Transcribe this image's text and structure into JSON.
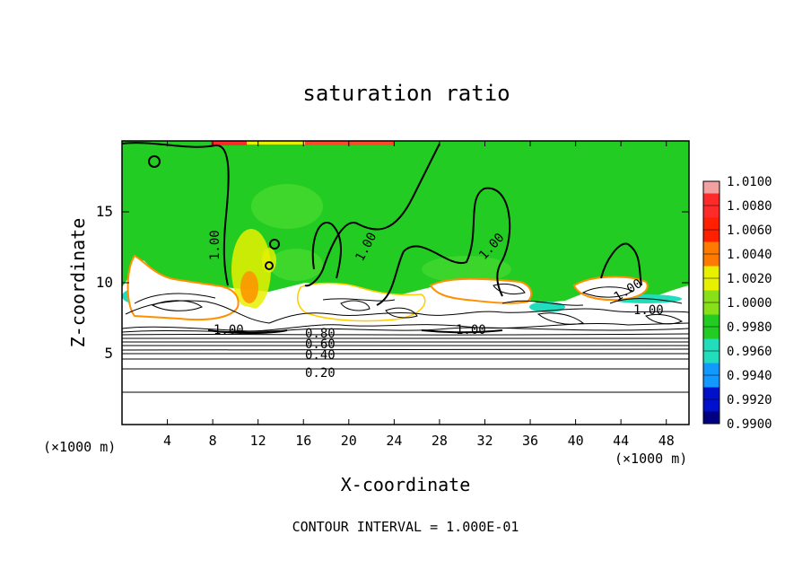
{
  "chart_data": {
    "type": "heatmap",
    "title": "saturation ratio",
    "xlabel": "X-coordinate",
    "ylabel": "Z-coordinate",
    "x_unit_left": "(×1000 m)",
    "x_unit_right": "(×1000 m)",
    "footer": "CONTOUR INTERVAL = 1.000E-01",
    "xlim": [
      0,
      50
    ],
    "ylim": [
      0,
      20
    ],
    "x_ticks": [
      4,
      8,
      12,
      16,
      20,
      24,
      28,
      32,
      36,
      40,
      44,
      48
    ],
    "y_ticks": [
      5,
      10,
      15
    ],
    "contour_labels": [
      {
        "text": "1.00",
        "x": 9.5,
        "z": 12.5
      },
      {
        "text": "1.00",
        "x": 21.5,
        "z": 11.9
      },
      {
        "text": "1.00",
        "x": 32.5,
        "z": 12.5
      },
      {
        "text": "1.00",
        "x": 44.3,
        "z": 9.2
      },
      {
        "text": "1.00",
        "x": 46.5,
        "z": 8.2
      },
      {
        "text": "1.00",
        "x": 9.5,
        "z": 6.8
      },
      {
        "text": "1.00",
        "x": 31.0,
        "z": 6.6
      },
      {
        "text": "0.80",
        "x": 17.5,
        "z": 6.6
      },
      {
        "text": "0.60",
        "x": 17.5,
        "z": 5.7
      },
      {
        "text": "0.40",
        "x": 17.5,
        "z": 4.9
      },
      {
        "text": "0.20",
        "x": 17.5,
        "z": 3.7
      }
    ],
    "contour_levels": [
      0.2,
      0.3,
      0.4,
      0.5,
      0.6,
      0.7,
      0.8,
      0.9,
      1.0
    ],
    "colorbar": {
      "levels": [
        "1.0100",
        "1.0080",
        "1.0060",
        "1.0040",
        "1.0020",
        "1.0000",
        "0.9980",
        "0.9960",
        "0.9940",
        "0.9920",
        "0.9900"
      ],
      "colors": [
        "#f3a0a0",
        "#ff2a2a",
        "#ff2000",
        "#ff7a00",
        "#e8f000",
        "#88e018",
        "#22cc22",
        "#22ddbb",
        "#1199ff",
        "#0011cc",
        "#000080",
        "#7700aa"
      ]
    },
    "field_colors": {
      "background": "#ffffff",
      "saturated": "#22cc22",
      "supersaturated": "#e8f000",
      "strong": "#ff2a2a",
      "subsaturated": "#22ddbb"
    }
  }
}
